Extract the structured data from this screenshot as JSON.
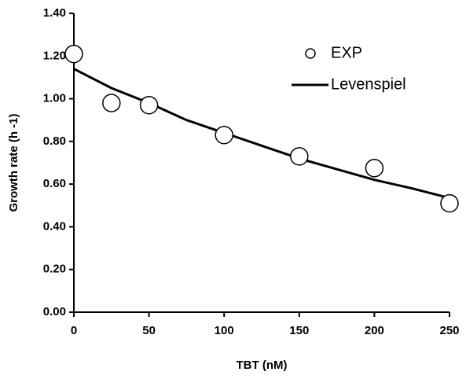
{
  "chart_data": {
    "type": "scatter",
    "x_label": "TBT (nM)",
    "y_label": "Growth rate (h -1)",
    "xlim": [
      0,
      250
    ],
    "xticks": [
      0,
      50,
      100,
      150,
      200,
      250
    ],
    "ylim": [
      0,
      1.4
    ],
    "yticks": [
      {
        "value": 0,
        "label": "0.00"
      },
      {
        "value": 0.2,
        "label": "0.20"
      },
      {
        "value": 0.4,
        "label": "0.40"
      },
      {
        "value": 0.6,
        "label": "0.60"
      },
      {
        "value": 0.8,
        "label": "0.80"
      },
      {
        "value": 1.0,
        "label": "1.00"
      },
      {
        "value": 1.2,
        "label": "1.20"
      },
      {
        "value": 1.4,
        "label": "1.40"
      }
    ],
    "legend": "upper right",
    "series": [
      {
        "name": "EXP",
        "type": "scatter",
        "color": "#000000",
        "x": [
          0,
          25,
          50,
          100,
          150,
          200,
          250
        ],
        "values": [
          1.21,
          0.98,
          0.97,
          0.83,
          0.73,
          0.675,
          0.51
        ]
      },
      {
        "name": "Levenspiel",
        "type": "line",
        "color": "#000000",
        "x": [
          0,
          25,
          50,
          75,
          100,
          125,
          150,
          175,
          200,
          225,
          250
        ],
        "values": [
          1.14,
          1.05,
          0.98,
          0.9,
          0.84,
          0.78,
          0.72,
          0.67,
          0.62,
          0.58,
          0.535
        ]
      }
    ]
  }
}
